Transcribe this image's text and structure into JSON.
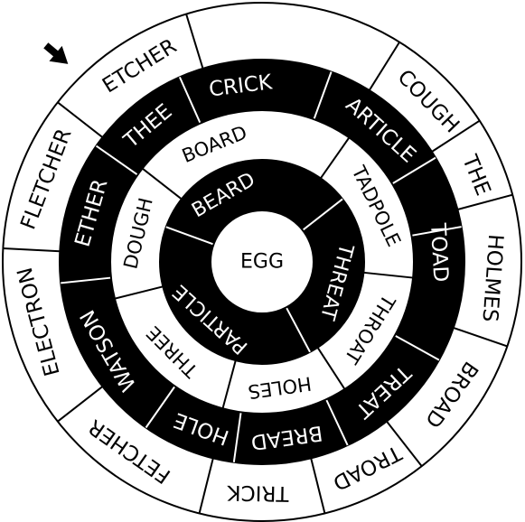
{
  "colors": {
    "ink": "#000000",
    "paper": "#ffffff"
  },
  "center": {
    "word": "EGG"
  },
  "pointer": {
    "icon": "arrow-icon"
  },
  "rings": [
    {
      "id": "ring-1",
      "style": "dark",
      "words": [
        "THREAT",
        "PARTICLE",
        "BEARD"
      ],
      "dividers_deg": [
        -38,
        62,
        200
      ],
      "word_angles_deg": [
        15,
        132,
        240
      ]
    },
    {
      "id": "ring-2",
      "style": "light",
      "words": [
        "TADPOLE",
        "THROAT",
        "HOLES",
        "THREE",
        "DOUGH",
        "BOARD"
      ],
      "dividers_deg": [
        -55,
        6,
        57,
        105,
        166,
        218
      ],
      "word_angles_deg": [
        -26,
        32,
        82,
        135,
        193,
        248
      ]
    },
    {
      "id": "ring-3",
      "style": "dark",
      "words": [
        "ARTICLE",
        "TOAD",
        "TREAT",
        "BREAD",
        "HOLE",
        "WATSON",
        "ETHER",
        "THEE",
        "CRICK"
      ],
      "dividers_deg": [
        -70,
        -31,
        -10,
        29,
        65,
        98,
        125,
        174,
        215,
        246
      ],
      "word_angles_deg": [
        -48,
        -3,
        47,
        82,
        110,
        150,
        196,
        230,
        263
      ]
    },
    {
      "id": "ring-4",
      "style": "light",
      "words": [
        "COUGH",
        "THE",
        "HOLMES",
        "BROAD",
        "TROAD",
        "TRICK",
        "FETCHER",
        "ELECTRON",
        "FLETCHER",
        "ETCHER"
      ],
      "dividers_deg": [
        -58,
        -33,
        -15,
        19,
        52,
        76,
        104,
        142,
        183,
        218,
        253
      ],
      "word_angles_deg": [
        -44,
        -22,
        4,
        35,
        63,
        91,
        125,
        165,
        201,
        238
      ]
    }
  ]
}
